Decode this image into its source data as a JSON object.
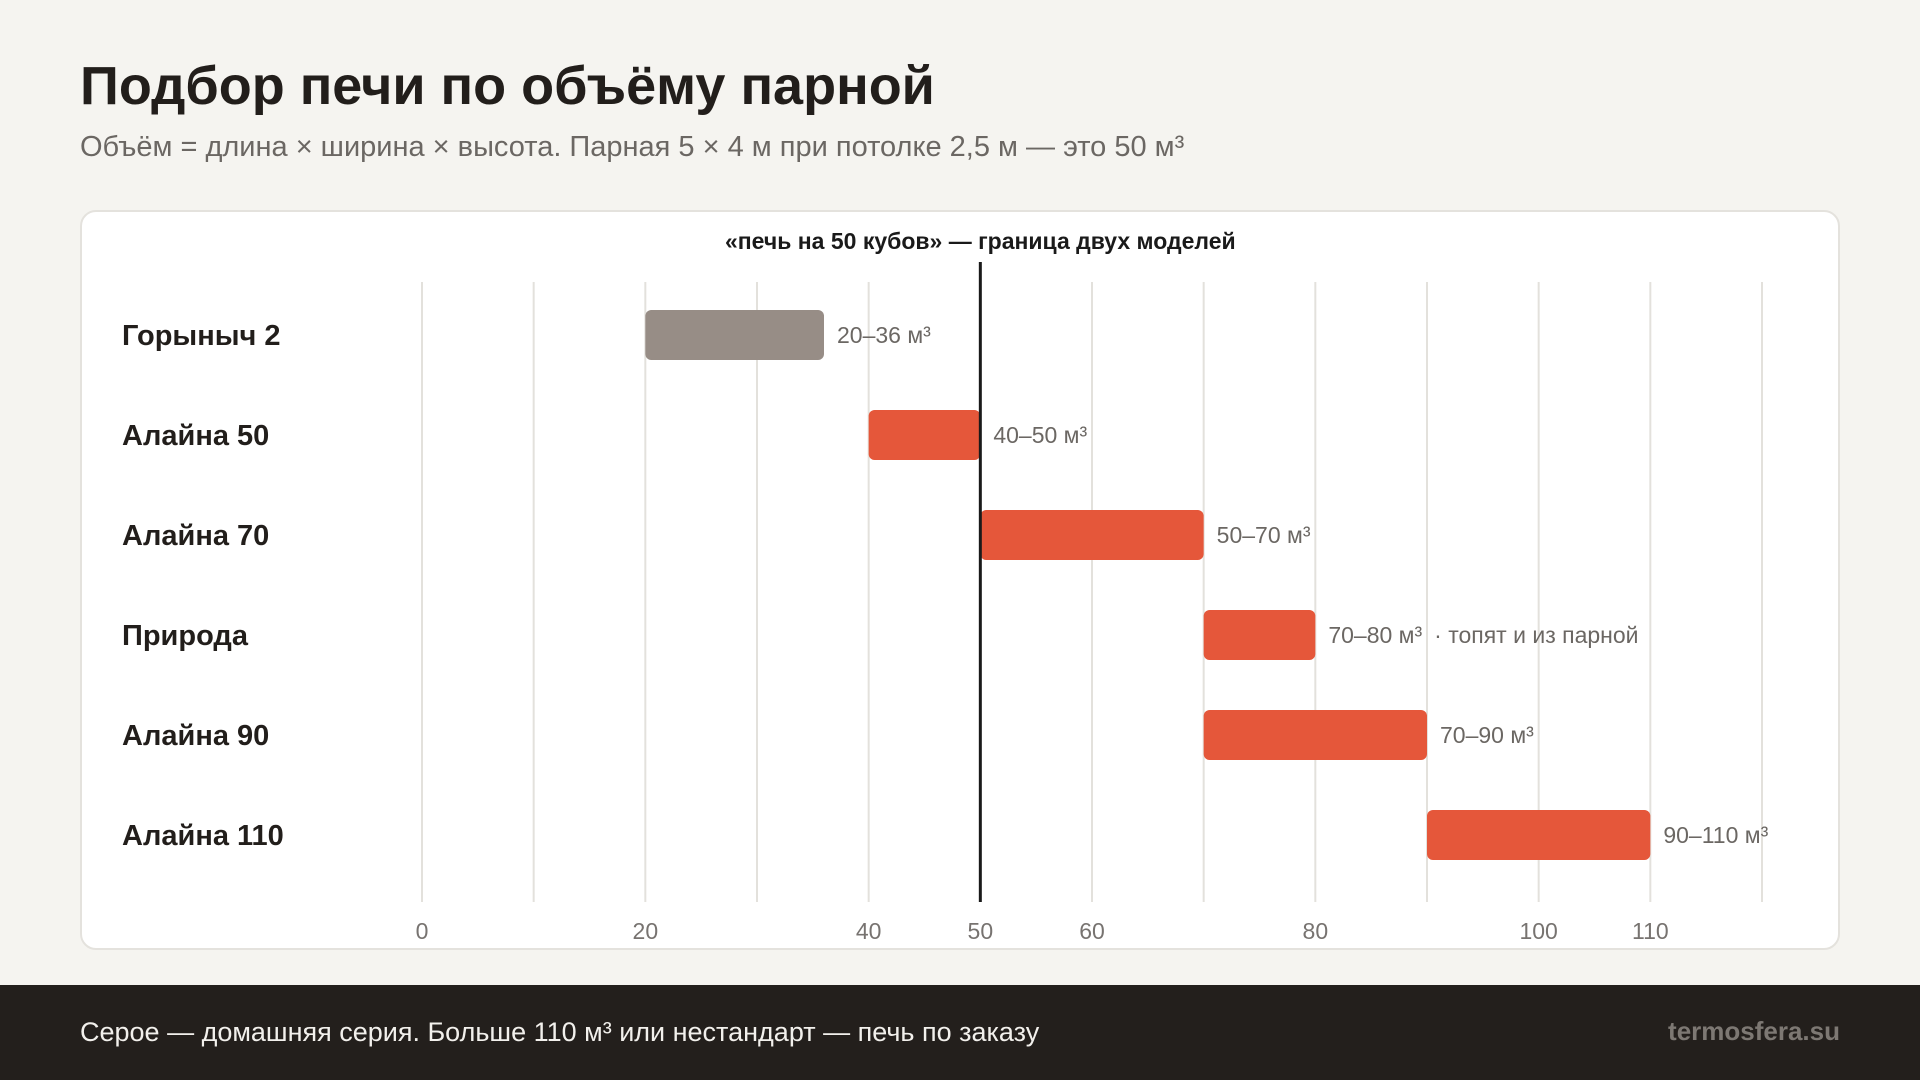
{
  "header": {
    "title": "Подбор печи по объёму парной",
    "subtitle": "Объём = длина × ширина × высота. Парная 5 × 4 м при потолке 2,5 м — это 50 м³"
  },
  "colors": {
    "home_series": "#978d86",
    "main_series": "#e5573a",
    "grid": "#e3e1dc",
    "marker": "#1a1a1a"
  },
  "chart_data": {
    "type": "bar",
    "orientation": "horizontal-range",
    "categories": [
      "Горыныч 2",
      "Алайна 50",
      "Алайна 70",
      "Природа",
      "Алайна 90",
      "Алайна 110"
    ],
    "ranges": [
      [
        20,
        36
      ],
      [
        40,
        50
      ],
      [
        50,
        70
      ],
      [
        70,
        80
      ],
      [
        70,
        90
      ],
      [
        90,
        110
      ]
    ],
    "value_labels": [
      "20–36 м³",
      "40–50 м³",
      "50–70 м³",
      "70–80 м³",
      "70–90 м³",
      "90–110 м³"
    ],
    "notes": [
      "",
      "",
      "",
      "·  топят и из парной",
      "",
      ""
    ],
    "series_group": [
      "home",
      "main",
      "main",
      "main",
      "main",
      "main"
    ],
    "xlim": [
      0,
      120
    ],
    "gridlines": [
      0,
      10,
      20,
      30,
      40,
      50,
      60,
      70,
      80,
      90,
      100,
      110,
      120
    ],
    "tick_labels": [
      {
        "value": 0,
        "label": "0"
      },
      {
        "value": 20,
        "label": "20"
      },
      {
        "value": 40,
        "label": "40"
      },
      {
        "value": 50,
        "label": "50"
      },
      {
        "value": 60,
        "label": "60"
      },
      {
        "value": 80,
        "label": "80"
      },
      {
        "value": 100,
        "label": "100"
      },
      {
        "value": 110,
        "label": "110"
      }
    ],
    "reference_line": {
      "value": 50,
      "label": "«печь на 50 кубов» — граница двух моделей"
    },
    "grid": true,
    "legend": "none"
  },
  "footer": {
    "note": "Серое — домашняя серия. Больше 110 м³ или нестандарт — печь по заказу",
    "brand": "termosfera.su"
  }
}
